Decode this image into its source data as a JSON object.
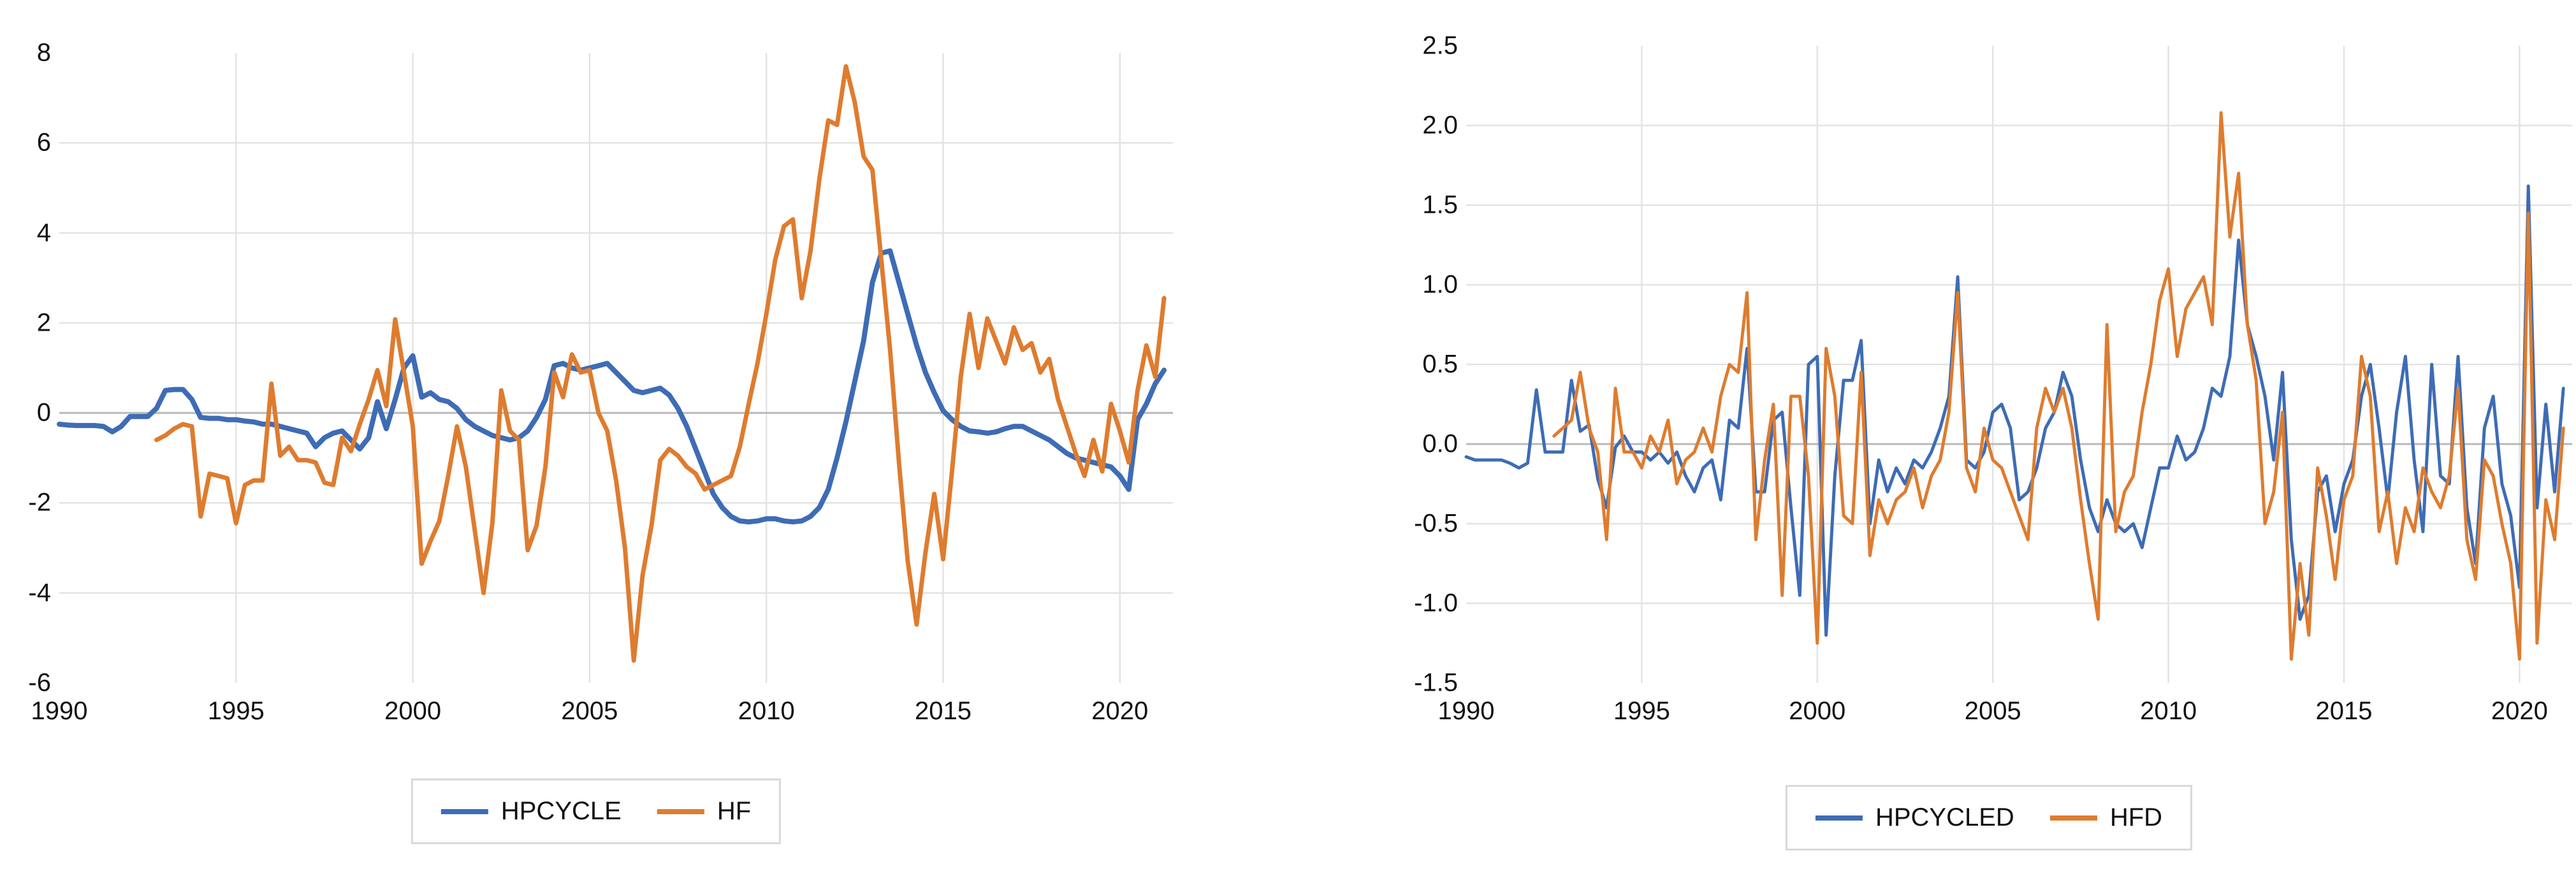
{
  "page": {
    "background": "#ffffff",
    "text_color": "#111111",
    "gridline_color": "#E3E3E3",
    "zero_line_color": "#B9B9B9",
    "legend_border_color": "#D9D9D9"
  },
  "chart_data": [
    {
      "type": "line",
      "title": "",
      "xlabel": "",
      "ylabel": "",
      "xlim": [
        1990,
        2021.5
      ],
      "ylim": [
        -6,
        8
      ],
      "x_ticks": [
        {
          "v": 1990,
          "label": "1990"
        },
        {
          "v": 1995,
          "label": "1995"
        },
        {
          "v": 2000,
          "label": "2000"
        },
        {
          "v": 2005,
          "label": "2005"
        },
        {
          "v": 2010,
          "label": "2010"
        },
        {
          "v": 2015,
          "label": "2015"
        },
        {
          "v": 2020,
          "label": "2020"
        }
      ],
      "y_ticks": [
        {
          "v": 8,
          "label": "8"
        },
        {
          "v": 6,
          "label": "6"
        },
        {
          "v": 4,
          "label": "4"
        },
        {
          "v": 2,
          "label": "2"
        },
        {
          "v": 0,
          "label": "0"
        },
        {
          "v": -2,
          "label": "-2"
        },
        {
          "v": -4,
          "label": "-4"
        },
        {
          "v": -6,
          "label": "-6"
        }
      ],
      "grid_y_values": [
        6,
        4,
        2,
        -2,
        -4
      ],
      "grid_x_values": [
        1995,
        2000,
        2005,
        2010,
        2015,
        2020
      ],
      "zero_line": 0,
      "legend_position": "bottom",
      "series": [
        {
          "name": "HPCYCLE",
          "color": "#3E6CB5",
          "line_width": 8,
          "x_start": 1990.0,
          "x_step": 0.25,
          "values": [
            -0.25,
            -0.27,
            -0.28,
            -0.28,
            -0.28,
            -0.3,
            -0.42,
            -0.3,
            -0.08,
            -0.08,
            -0.08,
            0.1,
            0.5,
            0.52,
            0.52,
            0.3,
            -0.1,
            -0.12,
            -0.12,
            -0.15,
            -0.15,
            -0.18,
            -0.2,
            -0.25,
            -0.25,
            -0.3,
            -0.35,
            -0.4,
            -0.45,
            -0.75,
            -0.55,
            -0.45,
            -0.4,
            -0.6,
            -0.8,
            -0.55,
            0.25,
            -0.35,
            0.3,
            1.0,
            1.27,
            0.35,
            0.45,
            0.3,
            0.25,
            0.1,
            -0.15,
            -0.3,
            -0.4,
            -0.5,
            -0.55,
            -0.6,
            -0.55,
            -0.4,
            -0.1,
            0.3,
            1.05,
            1.1,
            1.0,
            0.95,
            1.0,
            1.05,
            1.1,
            0.9,
            0.7,
            0.5,
            0.45,
            0.5,
            0.55,
            0.4,
            0.1,
            -0.3,
            -0.8,
            -1.3,
            -1.8,
            -2.1,
            -2.3,
            -2.4,
            -2.42,
            -2.4,
            -2.35,
            -2.35,
            -2.4,
            -2.42,
            -2.4,
            -2.3,
            -2.1,
            -1.7,
            -1.0,
            -0.2,
            0.7,
            1.6,
            2.9,
            3.55,
            3.6,
            2.9,
            2.2,
            1.5,
            0.9,
            0.45,
            0.05,
            -0.15,
            -0.3,
            -0.4,
            -0.42,
            -0.45,
            -0.42,
            -0.35,
            -0.3,
            -0.3,
            -0.4,
            -0.5,
            -0.6,
            -0.75,
            -0.9,
            -1.0,
            -1.05,
            -1.1,
            -1.15,
            -1.2,
            -1.4,
            -1.7,
            -0.15,
            0.2,
            0.65,
            0.95
          ]
        },
        {
          "name": "HF",
          "color": "#DE7C2F",
          "line_width": 7,
          "x_start": 1992.75,
          "x_step": 0.25,
          "values": [
            -0.6,
            -0.5,
            -0.35,
            -0.25,
            -0.3,
            -2.3,
            -1.35,
            -1.4,
            -1.45,
            -2.45,
            -1.6,
            -1.5,
            -1.5,
            0.65,
            -0.95,
            -0.75,
            -1.05,
            -1.05,
            -1.1,
            -1.55,
            -1.6,
            -0.55,
            -0.85,
            -0.25,
            0.3,
            0.95,
            0.15,
            2.08,
            0.9,
            -0.3,
            -3.35,
            -2.85,
            -2.4,
            -1.4,
            -0.3,
            -1.2,
            -2.6,
            -4.0,
            -2.45,
            0.5,
            -0.4,
            -0.6,
            -3.05,
            -2.5,
            -1.2,
            0.9,
            0.35,
            1.3,
            0.9,
            0.95,
            0.0,
            -0.4,
            -1.5,
            -3.0,
            -5.5,
            -3.6,
            -2.5,
            -1.05,
            -0.8,
            -0.95,
            -1.2,
            -1.35,
            -1.7,
            -1.6,
            -1.5,
            -1.4,
            -0.75,
            0.2,
            1.1,
            2.2,
            3.4,
            4.15,
            4.3,
            2.55,
            3.6,
            5.2,
            6.5,
            6.4,
            7.7,
            6.9,
            5.7,
            5.4,
            3.4,
            1.4,
            -1.1,
            -3.3,
            -4.7,
            -3.1,
            -1.8,
            -3.25,
            -1.3,
            0.8,
            2.2,
            1.0,
            2.1,
            1.6,
            1.1,
            1.9,
            1.4,
            1.55,
            0.9,
            1.2,
            0.3,
            -0.3,
            -0.9,
            -1.4,
            -0.6,
            -1.3,
            0.2,
            -0.4,
            -1.1,
            0.5,
            1.5,
            0.8,
            2.55
          ]
        }
      ]
    },
    {
      "type": "line",
      "title": "",
      "xlabel": "",
      "ylabel": "",
      "xlim": [
        1990,
        2021.5
      ],
      "ylim": [
        -1.5,
        2.5
      ],
      "x_ticks": [
        {
          "v": 1990,
          "label": "1990"
        },
        {
          "v": 1995,
          "label": "1995"
        },
        {
          "v": 2000,
          "label": "2000"
        },
        {
          "v": 2005,
          "label": "2005"
        },
        {
          "v": 2010,
          "label": "2010"
        },
        {
          "v": 2015,
          "label": "2015"
        },
        {
          "v": 2020,
          "label": "2020"
        }
      ],
      "y_ticks": [
        {
          "v": 2.5,
          "label": "2.5"
        },
        {
          "v": 2.0,
          "label": "2.0"
        },
        {
          "v": 1.5,
          "label": "1.5"
        },
        {
          "v": 1.0,
          "label": "1.0"
        },
        {
          "v": 0.5,
          "label": "0.5"
        },
        {
          "v": 0.0,
          "label": "0.0"
        },
        {
          "v": -0.5,
          "label": "-0.5"
        },
        {
          "v": -1.0,
          "label": "-1.0"
        },
        {
          "v": -1.5,
          "label": "-1.5"
        }
      ],
      "grid_y_values": [
        2.0,
        1.5,
        1.0,
        0.5,
        -0.5,
        -1.0
      ],
      "grid_x_values": [
        1995,
        2000,
        2005,
        2010,
        2015,
        2020
      ],
      "zero_line": 0,
      "legend_position": "bottom",
      "series": [
        {
          "name": "HPCYCLED",
          "color": "#3E6CB5",
          "line_width": 5,
          "x_start": 1990.0,
          "x_step": 0.25,
          "values": [
            -0.08,
            -0.1,
            -0.1,
            -0.1,
            -0.1,
            -0.12,
            -0.15,
            -0.12,
            0.34,
            -0.05,
            -0.05,
            -0.05,
            0.4,
            0.08,
            0.12,
            -0.22,
            -0.4,
            -0.02,
            0.05,
            -0.05,
            -0.05,
            -0.1,
            -0.05,
            -0.12,
            -0.05,
            -0.2,
            -0.3,
            -0.15,
            -0.1,
            -0.35,
            0.15,
            0.1,
            0.6,
            -0.3,
            -0.3,
            0.15,
            0.2,
            -0.4,
            -0.95,
            0.5,
            0.55,
            -1.2,
            -0.2,
            0.4,
            0.4,
            0.65,
            -0.5,
            -0.1,
            -0.3,
            -0.15,
            -0.25,
            -0.1,
            -0.15,
            -0.05,
            0.1,
            0.3,
            1.05,
            -0.1,
            -0.15,
            -0.05,
            0.2,
            0.25,
            0.1,
            -0.35,
            -0.3,
            -0.15,
            0.1,
            0.2,
            0.45,
            0.3,
            -0.1,
            -0.4,
            -0.55,
            -0.35,
            -0.5,
            -0.55,
            -0.5,
            -0.65,
            -0.4,
            -0.15,
            -0.15,
            0.05,
            -0.1,
            -0.05,
            0.1,
            0.35,
            0.3,
            0.55,
            1.28,
            0.75,
            0.55,
            0.3,
            -0.1,
            0.45,
            -0.6,
            -1.1,
            -0.95,
            -0.3,
            -0.2,
            -0.55,
            -0.25,
            -0.1,
            0.3,
            0.5,
            0.1,
            -0.35,
            0.2,
            0.55,
            -0.1,
            -0.55,
            0.5,
            -0.2,
            -0.25,
            0.55,
            -0.4,
            -0.75,
            0.1,
            0.3,
            -0.25,
            -0.45,
            -0.9,
            1.62,
            -0.4,
            0.25,
            -0.3,
            0.35
          ]
        },
        {
          "name": "HFD",
          "color": "#DE7C2F",
          "line_width": 5,
          "x_start": 1992.5,
          "x_step": 0.25,
          "values": [
            0.05,
            0.1,
            0.15,
            0.45,
            0.1,
            -0.05,
            -0.6,
            0.35,
            -0.05,
            -0.05,
            -0.15,
            0.05,
            -0.05,
            0.15,
            -0.25,
            -0.1,
            -0.05,
            0.1,
            -0.05,
            0.3,
            0.5,
            0.45,
            0.95,
            -0.6,
            -0.1,
            0.25,
            -0.95,
            0.3,
            0.3,
            -0.2,
            -1.25,
            0.6,
            0.3,
            -0.45,
            -0.5,
            0.45,
            -0.7,
            -0.35,
            -0.5,
            -0.35,
            -0.3,
            -0.15,
            -0.4,
            -0.2,
            -0.1,
            0.2,
            0.95,
            -0.15,
            -0.3,
            0.1,
            -0.1,
            -0.15,
            -0.3,
            -0.45,
            -0.6,
            0.1,
            0.35,
            0.2,
            0.35,
            0.1,
            -0.35,
            -0.75,
            -1.1,
            0.75,
            -0.55,
            -0.3,
            -0.2,
            0.2,
            0.5,
            0.9,
            1.1,
            0.55,
            0.85,
            0.95,
            1.05,
            0.75,
            2.08,
            1.3,
            1.7,
            0.75,
            0.4,
            -0.5,
            -0.3,
            0.2,
            -1.35,
            -0.75,
            -1.2,
            -0.15,
            -0.45,
            -0.85,
            -0.35,
            -0.2,
            0.55,
            0.3,
            -0.55,
            -0.3,
            -0.75,
            -0.4,
            -0.55,
            -0.15,
            -0.3,
            -0.4,
            -0.2,
            0.35,
            -0.6,
            -0.85,
            -0.1,
            -0.2,
            -0.5,
            -0.75,
            -1.35,
            1.45,
            -1.25,
            -0.35,
            -0.6,
            0.1
          ]
        }
      ]
    }
  ]
}
